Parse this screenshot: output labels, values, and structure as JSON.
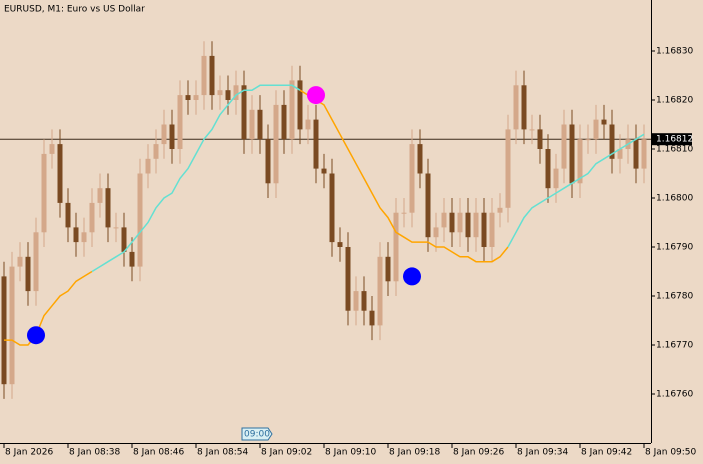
{
  "chart_data": {
    "type": "candlestick",
    "title": "EURUSD, M1:  Euro vs US Dollar",
    "open": [
      1.16784,
      1.16762,
      1.16786,
      1.16788,
      1.16781,
      1.16793,
      1.16809,
      1.16811,
      1.16799,
      1.16794,
      1.16791,
      1.16793,
      1.16799,
      1.16802,
      1.16794,
      1.16794,
      1.16789,
      1.16786,
      1.16805,
      1.16808,
      1.16811,
      1.16815,
      1.1681,
      1.16821,
      1.1682,
      1.16821,
      1.16829,
      1.16821,
      1.16822,
      1.1682,
      1.16823,
      1.16812,
      1.16818,
      1.16812,
      1.16803,
      1.16819,
      1.16812,
      1.16824,
      1.16814,
      1.16816,
      1.16806,
      1.16805,
      1.16791,
      1.1679,
      1.16777,
      1.16781,
      1.16777,
      1.16774,
      1.16788,
      1.16783,
      1.16797,
      1.16797,
      1.16811,
      1.16805,
      1.16792,
      1.16794,
      1.16797,
      1.16793,
      1.16797,
      1.16792,
      1.16797,
      1.1679,
      1.16797,
      1.16798,
      1.16814,
      1.16823,
      1.16814,
      1.16814,
      1.1681,
      1.16802,
      1.16806,
      1.16815,
      1.16803,
      1.16812,
      1.16812,
      1.16816,
      1.16815,
      1.16808,
      1.1681,
      1.16812,
      1.16806
    ],
    "high": [
      1.16787,
      1.16789,
      1.16791,
      1.16791,
      1.16796,
      1.16812,
      1.16814,
      1.16814,
      1.16802,
      1.16797,
      1.16796,
      1.16802,
      1.16805,
      1.16805,
      1.16797,
      1.16797,
      1.16792,
      1.16808,
      1.16811,
      1.16814,
      1.16818,
      1.16818,
      1.16824,
      1.16824,
      1.16824,
      1.16832,
      1.16832,
      1.16825,
      1.16825,
      1.16826,
      1.16826,
      1.16821,
      1.16821,
      1.16815,
      1.16822,
      1.16822,
      1.16827,
      1.16827,
      1.16819,
      1.16819,
      1.16809,
      1.16808,
      1.16794,
      1.16793,
      1.16784,
      1.16784,
      1.1678,
      1.16791,
      1.16791,
      1.168,
      1.168,
      1.16814,
      1.16814,
      1.16808,
      1.16797,
      1.168,
      1.168,
      1.168,
      1.168,
      1.168,
      1.168,
      1.168,
      1.16801,
      1.16817,
      1.16826,
      1.16826,
      1.16817,
      1.16817,
      1.16813,
      1.16809,
      1.16818,
      1.16818,
      1.16815,
      1.16815,
      1.16819,
      1.16819,
      1.16818,
      1.16813,
      1.16815,
      1.16815,
      1.16815
    ],
    "low": [
      1.16759,
      1.16759,
      1.16783,
      1.16778,
      1.16778,
      1.1679,
      1.16806,
      1.16796,
      1.16791,
      1.16788,
      1.16788,
      1.1679,
      1.16796,
      1.16791,
      1.16791,
      1.16786,
      1.16783,
      1.16783,
      1.16802,
      1.16805,
      1.16808,
      1.16807,
      1.16807,
      1.16817,
      1.16817,
      1.16818,
      1.16818,
      1.16818,
      1.16817,
      1.16817,
      1.16809,
      1.16809,
      1.16809,
      1.168,
      1.168,
      1.16809,
      1.16809,
      1.16811,
      1.16811,
      1.16803,
      1.16802,
      1.16788,
      1.16787,
      1.16774,
      1.16774,
      1.16774,
      1.16771,
      1.16771,
      1.1678,
      1.1678,
      1.16794,
      1.16794,
      1.16802,
      1.16789,
      1.16789,
      1.16791,
      1.1679,
      1.1679,
      1.16789,
      1.16789,
      1.16787,
      1.16787,
      1.16794,
      1.16795,
      1.16811,
      1.16811,
      1.16811,
      1.16807,
      1.16799,
      1.16799,
      1.16803,
      1.168,
      1.168,
      1.16809,
      1.16809,
      1.16812,
      1.16805,
      1.16805,
      1.16807,
      1.16803,
      1.16803
    ],
    "close": [
      1.16762,
      1.16786,
      1.16788,
      1.16781,
      1.16793,
      1.16809,
      1.16811,
      1.16799,
      1.16794,
      1.16791,
      1.16793,
      1.16799,
      1.16802,
      1.16794,
      1.16794,
      1.16789,
      1.16786,
      1.16805,
      1.16808,
      1.16811,
      1.16815,
      1.1681,
      1.16821,
      1.1682,
      1.16821,
      1.16829,
      1.16821,
      1.16822,
      1.1682,
      1.16823,
      1.16812,
      1.16818,
      1.16812,
      1.16803,
      1.16819,
      1.16812,
      1.16824,
      1.16814,
      1.16816,
      1.16806,
      1.16805,
      1.16791,
      1.1679,
      1.16777,
      1.16781,
      1.16777,
      1.16774,
      1.16788,
      1.16783,
      1.16797,
      1.16797,
      1.16811,
      1.16805,
      1.16792,
      1.16794,
      1.16797,
      1.16793,
      1.16797,
      1.16792,
      1.16797,
      1.1679,
      1.16797,
      1.16798,
      1.16814,
      1.16823,
      1.16814,
      1.16814,
      1.1681,
      1.16802,
      1.16806,
      1.16815,
      1.16803,
      1.16812,
      1.16812,
      1.16816,
      1.16815,
      1.16808,
      1.1681,
      1.16812,
      1.16806,
      1.16812
    ],
    "up_color": "#d4a88a",
    "down_color": "#7a4a22",
    "series": [
      {
        "color": "#ffa500",
        "values": [
          1.16771,
          1.16771,
          1.1677,
          1.1677,
          1.16772,
          1.16776,
          1.16778,
          1.1678,
          1.16781,
          1.16783,
          1.16784,
          1.16785,
          null,
          null,
          null,
          null,
          null,
          null,
          null,
          null,
          null,
          null,
          null,
          null,
          null,
          null,
          null,
          null,
          null,
          null,
          null,
          null,
          null,
          null,
          null,
          null,
          null,
          1.16822,
          1.16821,
          1.1682,
          1.16819,
          1.16816,
          1.16813,
          1.1681,
          1.16807,
          1.16804,
          1.16801,
          1.16798,
          1.16796,
          1.16793,
          1.16792,
          1.16791,
          1.16791,
          1.16791,
          1.1679,
          1.1679,
          1.16789,
          1.16788,
          1.16788,
          1.16787,
          1.16787,
          1.16787,
          1.16788,
          1.1679,
          null,
          null,
          null,
          null,
          null,
          null,
          null,
          null,
          null,
          null,
          null,
          null,
          null,
          null,
          null,
          null,
          null
        ]
      },
      {
        "color": "#64e0d2",
        "values": [
          null,
          null,
          null,
          null,
          null,
          null,
          null,
          null,
          null,
          null,
          null,
          1.16785,
          1.16786,
          1.16787,
          1.16788,
          1.16789,
          1.16791,
          1.16793,
          1.16795,
          1.16798,
          1.168,
          1.16801,
          1.16804,
          1.16806,
          1.16809,
          1.16812,
          1.16814,
          1.16817,
          1.16819,
          1.16821,
          1.16822,
          1.16822,
          1.16823,
          1.16823,
          1.16823,
          1.16823,
          1.16823,
          1.16822,
          null,
          null,
          null,
          null,
          null,
          null,
          null,
          null,
          null,
          null,
          null,
          null,
          null,
          null,
          null,
          null,
          null,
          null,
          null,
          null,
          null,
          null,
          null,
          null,
          null,
          1.1679,
          1.16793,
          1.16796,
          1.16798,
          1.16799,
          1.168,
          1.16801,
          1.16802,
          1.16803,
          1.16804,
          1.16805,
          1.16807,
          1.16808,
          1.16809,
          1.1681,
          1.16811,
          1.16812,
          1.16813
        ]
      }
    ],
    "markers": [
      {
        "x": 4,
        "y": 1.16772,
        "color": "#0000ff"
      },
      {
        "x": 39,
        "y": 1.16821,
        "color": "#ff00ff"
      },
      {
        "x": 51,
        "y": 1.16784,
        "color": "#0000ff"
      }
    ],
    "price_line": 1.16812,
    "time_marker": {
      "value": 30,
      "label": "09:00"
    },
    "xlim": [
      -0.5,
      80.875
    ],
    "ylim": [
      1.1675,
      1.1684
    ],
    "xticks": [
      {
        "value": 0,
        "label": "8 Jan 2026"
      },
      {
        "value": 8,
        "label": "8 Jan 08:38"
      },
      {
        "value": 16,
        "label": "8 Jan 08:46"
      },
      {
        "value": 24,
        "label": "8 Jan 08:54"
      },
      {
        "value": 32,
        "label": "8 Jan 09:02"
      },
      {
        "value": 40,
        "label": "8 Jan 09:10"
      },
      {
        "value": 48,
        "label": "8 Jan 09:18"
      },
      {
        "value": 56,
        "label": "8 Jan 09:26"
      },
      {
        "value": 64,
        "label": "8 Jan 09:34"
      },
      {
        "value": 72,
        "label": "8 Jan 09:42"
      },
      {
        "value": 80,
        "label": "8 Jan 09:50"
      }
    ],
    "yticks": [
      {
        "value": 1.1676,
        "label": "1.16760"
      },
      {
        "value": 1.1677,
        "label": "1.16770"
      },
      {
        "value": 1.1678,
        "label": "1.16780"
      },
      {
        "value": 1.1679,
        "label": "1.16790"
      },
      {
        "value": 1.168,
        "label": "1.16800"
      },
      {
        "value": 1.1681,
        "label": "1.16810"
      },
      {
        "value": 1.1682,
        "label": "1.16820"
      },
      {
        "value": 1.1683,
        "label": "1.16830"
      }
    ]
  }
}
